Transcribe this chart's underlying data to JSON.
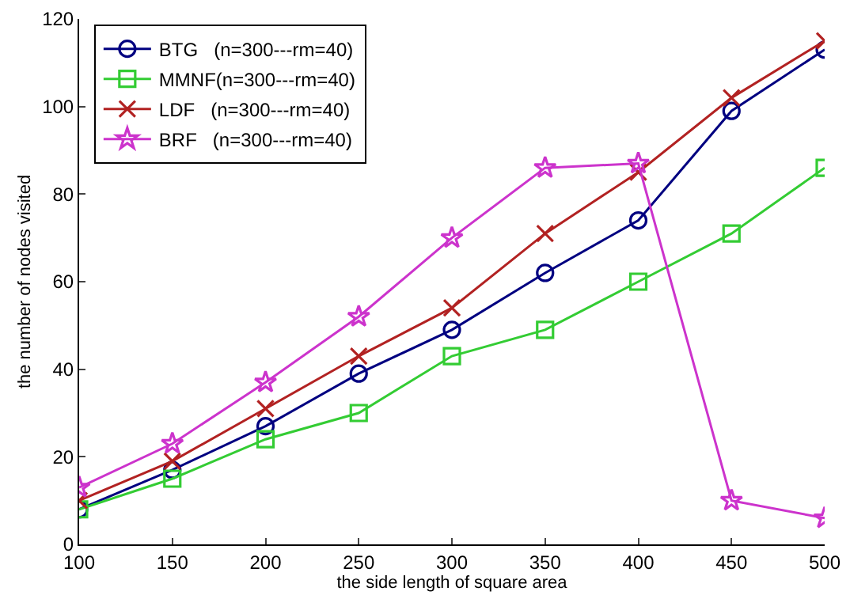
{
  "chart_data": {
    "type": "line",
    "xlabel": "the side length of square area",
    "ylabel": "the number of nodes visited",
    "x": [
      100,
      150,
      200,
      250,
      300,
      350,
      400,
      450,
      500
    ],
    "series": [
      {
        "name": "BTG   (n=300---rm=40)",
        "color": "#000080",
        "marker": "circle",
        "values": [
          8,
          17,
          27,
          39,
          49,
          62,
          74,
          99,
          113
        ]
      },
      {
        "name": "MMNF(n=300---rm=40)",
        "color": "#33cc33",
        "marker": "square",
        "values": [
          8,
          15,
          24,
          30,
          43,
          49,
          60,
          71,
          86
        ]
      },
      {
        "name": "LDF   (n=300---rm=40)",
        "color": "#b22222",
        "marker": "cross",
        "values": [
          10,
          19,
          31,
          43,
          54,
          71,
          85,
          102,
          115
        ]
      },
      {
        "name": "BRF   (n=300---rm=40)",
        "color": "#cc33cc",
        "marker": "star",
        "values": [
          13,
          23,
          37,
          52,
          70,
          86,
          87,
          10,
          6
        ]
      }
    ],
    "xlim": [
      100,
      500
    ],
    "xticks": [
      100,
      150,
      200,
      250,
      300,
      350,
      400,
      450,
      500
    ],
    "ylim": [
      0,
      120
    ],
    "yticks": [
      0,
      20,
      40,
      60,
      80,
      100,
      120
    ],
    "grid": false,
    "legend": "top left",
    "line_style": "solid"
  }
}
